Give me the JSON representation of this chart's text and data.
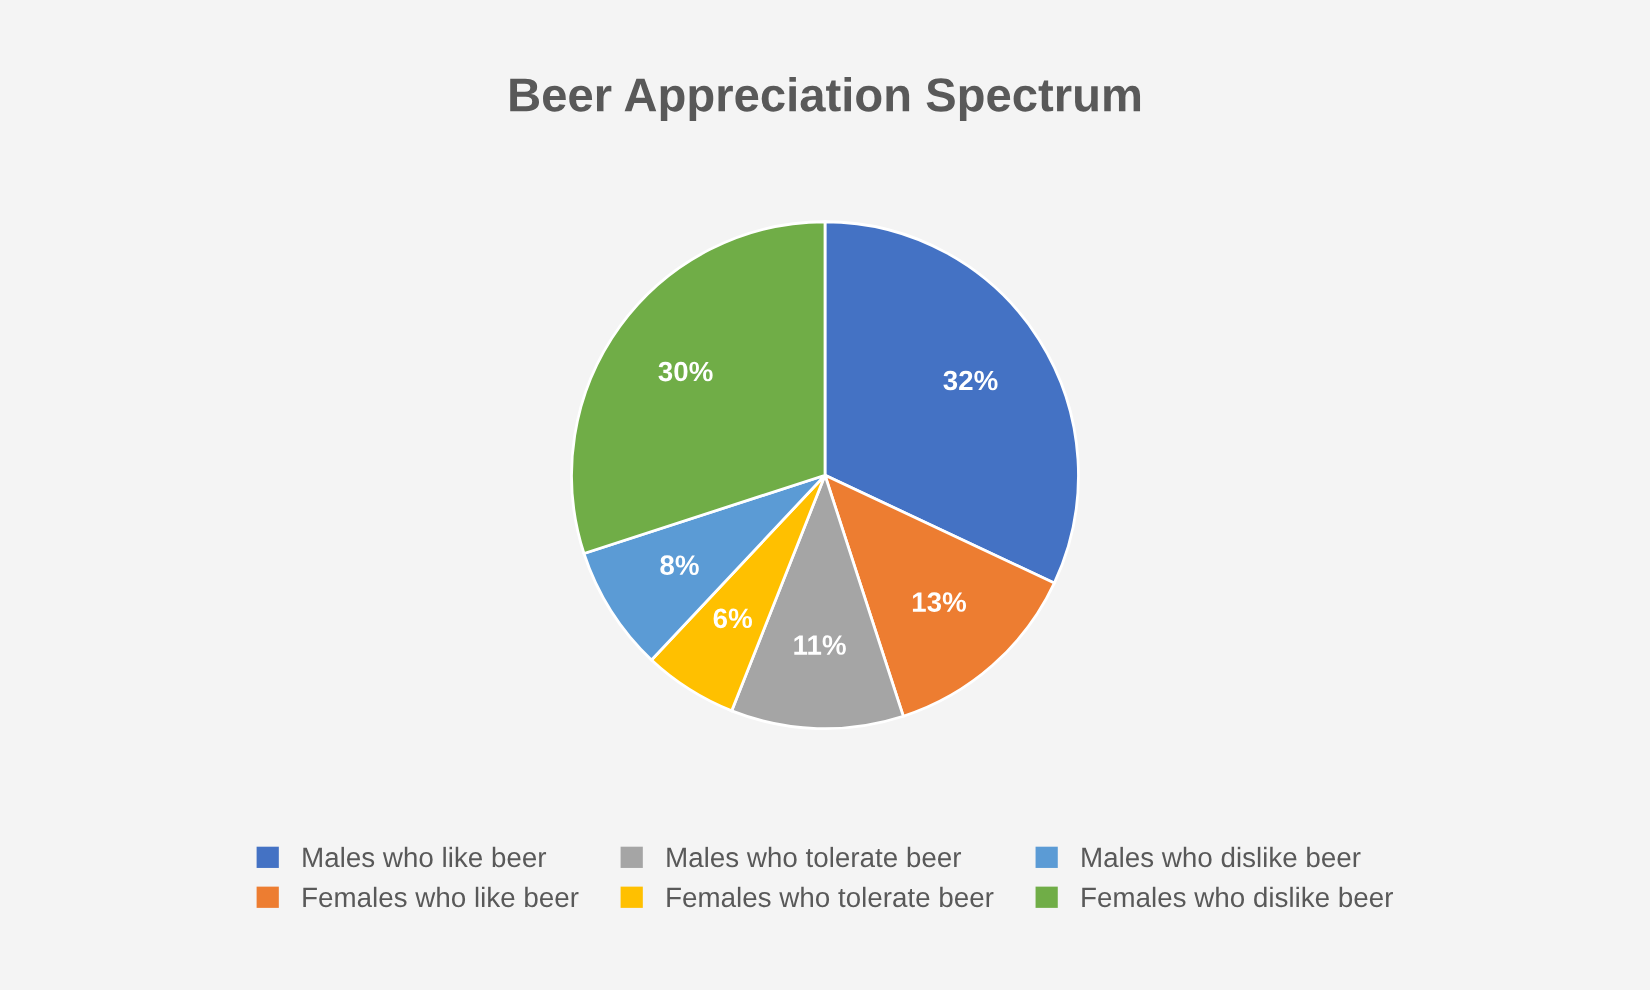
{
  "chart_data": {
    "type": "pie",
    "title": "Beer Appreciation Spectrum",
    "categories": [
      "Males who like beer",
      "Females who like beer",
      "Males who tolerate beer",
      "Females who tolerate beer",
      "Males who dislike beer",
      "Females who dislike beer"
    ],
    "values": [
      32,
      13,
      11,
      6,
      8,
      30
    ],
    "value_labels": [
      "32%",
      "13%",
      "11%",
      "6%",
      "8%",
      "30%"
    ],
    "colors": [
      "#4472c4",
      "#ed7d31",
      "#a5a5a5",
      "#ffc000",
      "#5b9bd5",
      "#70ad47"
    ],
    "legend": "bottom"
  }
}
